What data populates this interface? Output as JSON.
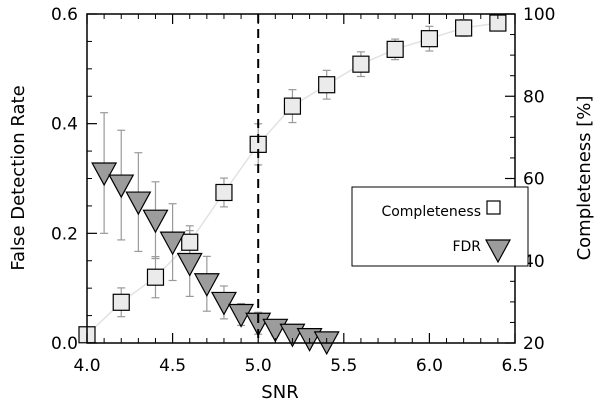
{
  "chart_data": {
    "type": "scatter",
    "xlabel": "SNR",
    "ylabel": "False Detection Rate",
    "y2label": "Completeness [%]",
    "xlim": [
      4.0,
      6.5
    ],
    "ylim": [
      0.0,
      0.6
    ],
    "y2lim": [
      20,
      100
    ],
    "xticks": [
      "4.0",
      "4.5",
      "5.0",
      "5.5",
      "6.0",
      "6.5"
    ],
    "yticks": [
      "0.0",
      "0.2",
      "0.4",
      "0.6"
    ],
    "y2ticks": [
      "20",
      "40",
      "60",
      "80",
      "100"
    ],
    "vline_x": 5.0,
    "legend": {
      "position": "center-right",
      "entries": [
        "Completeness",
        "FDR"
      ]
    },
    "series": [
      {
        "name": "Completeness",
        "axis": "right",
        "marker": "square",
        "points": [
          {
            "x": 4.0,
            "y": 22.0,
            "err": 0
          },
          {
            "x": 4.2,
            "y": 29.9,
            "err": 3.5
          },
          {
            "x": 4.4,
            "y": 36.0,
            "err": 5.0
          },
          {
            "x": 4.6,
            "y": 44.5,
            "err": 4.0
          },
          {
            "x": 4.8,
            "y": 56.6,
            "err": 3.5
          },
          {
            "x": 5.0,
            "y": 68.3,
            "err": 5.0
          },
          {
            "x": 5.2,
            "y": 77.6,
            "err": 4.0
          },
          {
            "x": 5.4,
            "y": 82.8,
            "err": 3.5
          },
          {
            "x": 5.6,
            "y": 87.8,
            "err": 3.0
          },
          {
            "x": 5.8,
            "y": 91.4,
            "err": 2.5
          },
          {
            "x": 6.0,
            "y": 94.0,
            "err": 3.0
          },
          {
            "x": 6.2,
            "y": 96.6,
            "err": 2.0
          },
          {
            "x": 6.4,
            "y": 97.8,
            "err": 1.0
          }
        ]
      },
      {
        "name": "FDR",
        "axis": "left",
        "marker": "triangle-down",
        "points": [
          {
            "x": 4.1,
            "y": 0.31,
            "err": 0.11
          },
          {
            "x": 4.2,
            "y": 0.288,
            "err": 0.1
          },
          {
            "x": 4.3,
            "y": 0.257,
            "err": 0.09
          },
          {
            "x": 4.4,
            "y": 0.224,
            "err": 0.07
          },
          {
            "x": 4.5,
            "y": 0.184,
            "err": 0.07
          },
          {
            "x": 4.6,
            "y": 0.145,
            "err": 0.06
          },
          {
            "x": 4.7,
            "y": 0.108,
            "err": 0.05
          },
          {
            "x": 4.8,
            "y": 0.074,
            "err": 0.03
          },
          {
            "x": 4.9,
            "y": 0.052,
            "err": 0.02
          },
          {
            "x": 5.0,
            "y": 0.036,
            "err": 0.02
          },
          {
            "x": 5.1,
            "y": 0.025,
            "err": 0.012
          },
          {
            "x": 5.2,
            "y": 0.016,
            "err": 0.008
          },
          {
            "x": 5.3,
            "y": 0.008,
            "err": 0.005
          },
          {
            "x": 5.4,
            "y": 0.002,
            "err": 0.002
          }
        ]
      }
    ],
    "colors": {
      "square_fill": "#ebebeb",
      "triangle_fill": "#9c9c9c",
      "errorbar": "#9a9a9a",
      "connector": "#e2e2e2"
    }
  }
}
